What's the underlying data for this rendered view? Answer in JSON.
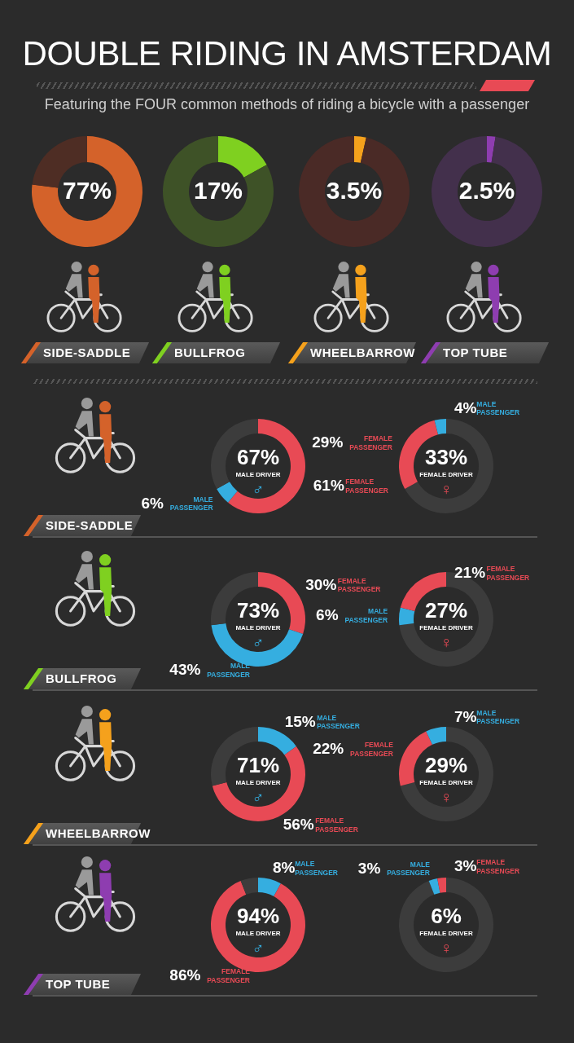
{
  "chart_data": [
    {
      "type": "other",
      "title": "DOUBLE RIDING IN AMSTERDAM",
      "subtitle": "Featuring the FOUR common methods of riding a bicycle with a passenger"
    },
    {
      "type": "donut",
      "title": "SIDE-SADDLE",
      "categories": [
        null,
        null
      ],
      "values": [
        77,
        23
      ],
      "colors": [
        "#d4622a",
        "#4e2d24"
      ],
      "value_labels": [
        "77%",
        null
      ]
    },
    {
      "type": "donut",
      "title": "BULLFROG",
      "categories": [
        null,
        null
      ],
      "values": [
        17,
        83
      ],
      "colors": [
        "#7fd020",
        "#3e5227"
      ],
      "value_labels": [
        "17%",
        null
      ]
    },
    {
      "type": "donut",
      "title": "WHEELBARROW",
      "categories": [
        null,
        null
      ],
      "values": [
        3.5,
        96.5
      ],
      "colors": [
        "#f5a11c",
        "#4a2a26"
      ],
      "value_labels": [
        "3.5%",
        null
      ]
    },
    {
      "type": "donut",
      "title": "TOP TUBE",
      "categories": [
        null,
        null
      ],
      "values": [
        2.5,
        97.5
      ],
      "colors": [
        "#8e3db0",
        "#43304c"
      ],
      "value_labels": [
        "2.5%",
        null
      ]
    },
    {
      "type": "donut",
      "title": "SIDE-SADDLE",
      "categories": [
        "FEMALE PASSENGER",
        "MALE PASSENGER",
        null
      ],
      "values": [
        61,
        6,
        33
      ],
      "colors": [
        "#e84a55",
        "#35aee0",
        "#3c3c3c"
      ],
      "value_labels": [
        "61%",
        "6%",
        null
      ],
      "annotations": [
        "67%",
        "MALE DRIVER",
        "♂"
      ]
    },
    {
      "type": "donut",
      "categories": [
        null,
        "FEMALE PASSENGER",
        "MALE PASSENGER"
      ],
      "values": [
        67,
        29,
        4
      ],
      "colors": [
        "#3c3c3c",
        "#e84a55",
        "#35aee0"
      ],
      "value_labels": [
        null,
        "29%",
        "4%"
      ],
      "annotations": [
        "33%",
        "FEMALE DRIVER",
        "♀"
      ]
    },
    {
      "type": "donut",
      "title": "BULLFROG",
      "categories": [
        "FEMALE PASSENGER",
        "MALE PASSENGER",
        null
      ],
      "values": [
        30,
        43,
        27
      ],
      "colors": [
        "#e84a55",
        "#35aee0",
        "#3c3c3c"
      ],
      "value_labels": [
        "30%",
        "43%",
        null
      ],
      "annotations": [
        "73%",
        "MALE DRIVER",
        "♂"
      ]
    },
    {
      "type": "donut",
      "categories": [
        null,
        "MALE PASSENGER",
        "FEMALE PASSENGER"
      ],
      "values": [
        73,
        6,
        21
      ],
      "colors": [
        "#3c3c3c",
        "#35aee0",
        "#e84a55"
      ],
      "value_labels": [
        null,
        "6%",
        "21%"
      ],
      "annotations": [
        "27%",
        "FEMALE DRIVER",
        "♀"
      ]
    },
    {
      "type": "donut",
      "title": "WHEELBARROW",
      "categories": [
        "MALE PASSENGER",
        "FEMALE PASSENGER",
        null
      ],
      "values": [
        15,
        56,
        29
      ],
      "colors": [
        "#35aee0",
        "#e84a55",
        "#3c3c3c"
      ],
      "value_labels": [
        "15%",
        "56%",
        null
      ],
      "annotations": [
        "71%",
        "MALE DRIVER",
        "♂"
      ]
    },
    {
      "type": "donut",
      "categories": [
        null,
        "FEMALE PASSENGER",
        "MALE PASSENGER"
      ],
      "values": [
        71,
        22,
        7
      ],
      "colors": [
        "#3c3c3c",
        "#e84a55",
        "#35aee0"
      ],
      "value_labels": [
        null,
        "22%",
        "7%"
      ],
      "annotations": [
        "29%",
        "FEMALE DRIVER",
        "♀"
      ]
    },
    {
      "type": "donut",
      "title": "TOP TUBE",
      "categories": [
        "MALE PASSENGER",
        "FEMALE PASSENGER",
        null
      ],
      "values": [
        8,
        86,
        6
      ],
      "colors": [
        "#35aee0",
        "#e84a55",
        "#3c3c3c"
      ],
      "value_labels": [
        "8%",
        "86%",
        null
      ],
      "annotations": [
        "94%",
        "MALE DRIVER",
        "♂"
      ]
    },
    {
      "type": "donut",
      "categories": [
        null,
        "MALE PASSENGER",
        "FEMALE PASSENGER"
      ],
      "values": [
        94,
        3,
        3
      ],
      "colors": [
        "#3c3c3c",
        "#35aee0",
        "#e84a55"
      ],
      "value_labels": [
        null,
        "3%",
        "3%"
      ],
      "annotations": [
        "6%",
        "FEMALE DRIVER",
        "♀"
      ]
    }
  ]
}
